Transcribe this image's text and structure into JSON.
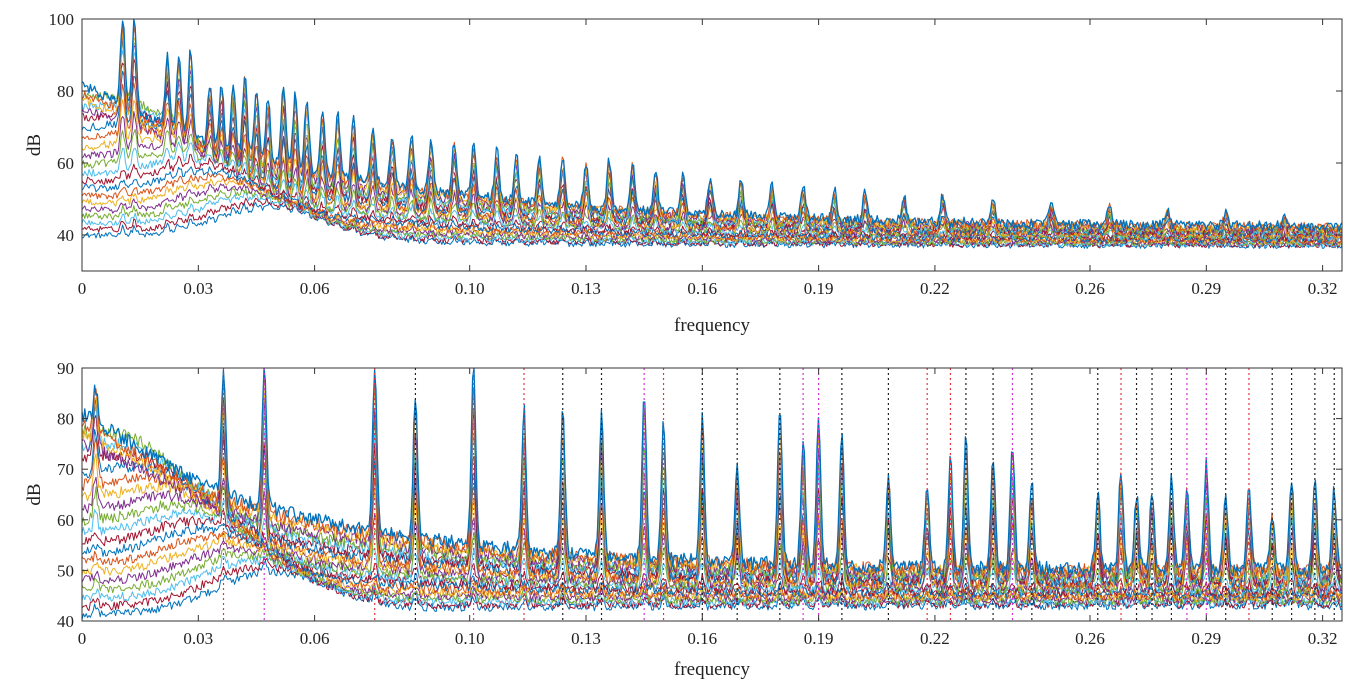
{
  "chart_data": [
    {
      "type": "line",
      "xlabel": "frequency",
      "ylabel": "dB",
      "xlim": [
        0,
        0.325
      ],
      "ylim": [
        30,
        100
      ],
      "x_ticks": [
        0,
        0.03,
        0.06,
        0.1,
        0.13,
        0.16,
        0.19,
        0.22,
        0.26,
        0.29,
        0.32
      ],
      "x_tick_labels": [
        "0",
        "0.03",
        "0.06",
        "0.10",
        "0.13",
        "0.16",
        "0.19",
        "0.22",
        "0.26",
        "0.29",
        "0.32"
      ],
      "y_ticks": [
        40,
        60,
        80,
        100
      ],
      "y_tick_labels": [
        "40",
        "60",
        "80",
        "100"
      ],
      "grid": false,
      "series_count": 22,
      "series_colors": [
        "#0072BD",
        "#D95319",
        "#EDB120",
        "#7E2F8E",
        "#77AC30",
        "#4DBEEE",
        "#A2142F"
      ],
      "peak_frequencies": [
        0.0105,
        0.0135,
        0.022,
        0.025,
        0.028,
        0.033,
        0.036,
        0.039,
        0.042,
        0.045,
        0.048,
        0.052,
        0.055,
        0.058,
        0.062,
        0.066,
        0.07,
        0.075,
        0.08,
        0.085,
        0.09,
        0.096,
        0.101,
        0.107,
        0.112,
        0.118,
        0.124,
        0.13,
        0.136,
        0.142,
        0.148,
        0.155,
        0.162,
        0.17,
        0.178,
        0.186,
        0.194,
        0.202,
        0.212,
        0.222,
        0.235,
        0.25,
        0.265,
        0.28,
        0.295,
        0.31
      ],
      "peak_heights_db": [
        100,
        100,
        90,
        89,
        92,
        82,
        82,
        83,
        85,
        80,
        78,
        82,
        80,
        78,
        75,
        74,
        72,
        70,
        68,
        68,
        66,
        66,
        66,
        64,
        63,
        62,
        62,
        60,
        61,
        60,
        57,
        57,
        56,
        56,
        54,
        54,
        53,
        52,
        51,
        51,
        50,
        49,
        48,
        47,
        46,
        45
      ],
      "lowest_series_start_db": 40,
      "highest_series_start_db": 78,
      "end_level_db_range": [
        37,
        42
      ]
    },
    {
      "type": "line",
      "xlabel": "frequency",
      "ylabel": "dB",
      "xlim": [
        0,
        0.325
      ],
      "ylim": [
        40,
        90
      ],
      "x_ticks": [
        0,
        0.03,
        0.06,
        0.1,
        0.13,
        0.16,
        0.19,
        0.22,
        0.26,
        0.29,
        0.32
      ],
      "x_tick_labels": [
        "0",
        "0.03",
        "0.06",
        "0.10",
        "0.13",
        "0.16",
        "0.19",
        "0.22",
        "0.26",
        "0.29",
        "0.32"
      ],
      "y_ticks": [
        40,
        50,
        60,
        70,
        80,
        90
      ],
      "y_tick_labels": [
        "40",
        "50",
        "60",
        "70",
        "80",
        "90"
      ],
      "grid": false,
      "series_count": 22,
      "series_colors": [
        "#0072BD",
        "#D95319",
        "#EDB120",
        "#7E2F8E",
        "#77AC30",
        "#4DBEEE",
        "#A2142F"
      ],
      "peaks": [
        {
          "x": 0.0035,
          "height": 86
        },
        {
          "x": 0.0365,
          "height": 90
        },
        {
          "x": 0.047,
          "height": 90
        },
        {
          "x": 0.0755,
          "height": 90
        },
        {
          "x": 0.086,
          "height": 85
        },
        {
          "x": 0.101,
          "height": 90
        },
        {
          "x": 0.114,
          "height": 82
        },
        {
          "x": 0.124,
          "height": 82
        },
        {
          "x": 0.134,
          "height": 81
        },
        {
          "x": 0.145,
          "height": 85
        },
        {
          "x": 0.15,
          "height": 80
        },
        {
          "x": 0.16,
          "height": 80
        },
        {
          "x": 0.169,
          "height": 70
        },
        {
          "x": 0.18,
          "height": 82
        },
        {
          "x": 0.186,
          "height": 76
        },
        {
          "x": 0.19,
          "height": 80
        },
        {
          "x": 0.196,
          "height": 78
        },
        {
          "x": 0.208,
          "height": 70
        },
        {
          "x": 0.218,
          "height": 67
        },
        {
          "x": 0.224,
          "height": 72
        },
        {
          "x": 0.228,
          "height": 76
        },
        {
          "x": 0.235,
          "height": 73
        },
        {
          "x": 0.24,
          "height": 75
        },
        {
          "x": 0.245,
          "height": 67
        },
        {
          "x": 0.262,
          "height": 66
        },
        {
          "x": 0.268,
          "height": 70
        },
        {
          "x": 0.272,
          "height": 65
        },
        {
          "x": 0.276,
          "height": 66
        },
        {
          "x": 0.281,
          "height": 69
        },
        {
          "x": 0.285,
          "height": 67
        },
        {
          "x": 0.29,
          "height": 71
        },
        {
          "x": 0.295,
          "height": 65
        },
        {
          "x": 0.301,
          "height": 67
        },
        {
          "x": 0.307,
          "height": 61
        },
        {
          "x": 0.312,
          "height": 68
        },
        {
          "x": 0.318,
          "height": 68
        },
        {
          "x": 0.323,
          "height": 66
        }
      ],
      "vertical_markers": [
        {
          "x": 0.0365,
          "color": "#e8333b"
        },
        {
          "x": 0.047,
          "color": "#d633d6"
        },
        {
          "x": 0.0755,
          "color": "#e8333b"
        },
        {
          "x": 0.086,
          "color": "#222222"
        },
        {
          "x": 0.101,
          "color": "#d633d6"
        },
        {
          "x": 0.114,
          "color": "#e8333b"
        },
        {
          "x": 0.124,
          "color": "#222222"
        },
        {
          "x": 0.134,
          "color": "#222222"
        },
        {
          "x": 0.145,
          "color": "#d633d6"
        },
        {
          "x": 0.15,
          "color": "#e8333b"
        },
        {
          "x": 0.16,
          "color": "#222222"
        },
        {
          "x": 0.169,
          "color": "#222222"
        },
        {
          "x": 0.18,
          "color": "#222222"
        },
        {
          "x": 0.186,
          "color": "#d633d6"
        },
        {
          "x": 0.19,
          "color": "#d633d6"
        },
        {
          "x": 0.196,
          "color": "#222222"
        },
        {
          "x": 0.208,
          "color": "#222222"
        },
        {
          "x": 0.218,
          "color": "#e8333b"
        },
        {
          "x": 0.224,
          "color": "#e8333b"
        },
        {
          "x": 0.228,
          "color": "#222222"
        },
        {
          "x": 0.235,
          "color": "#222222"
        },
        {
          "x": 0.24,
          "color": "#d633d6"
        },
        {
          "x": 0.245,
          "color": "#222222"
        },
        {
          "x": 0.262,
          "color": "#222222"
        },
        {
          "x": 0.268,
          "color": "#e8333b"
        },
        {
          "x": 0.272,
          "color": "#222222"
        },
        {
          "x": 0.276,
          "color": "#222222"
        },
        {
          "x": 0.281,
          "color": "#222222"
        },
        {
          "x": 0.285,
          "color": "#d633d6"
        },
        {
          "x": 0.29,
          "color": "#d633d6"
        },
        {
          "x": 0.295,
          "color": "#222222"
        },
        {
          "x": 0.301,
          "color": "#e8333b"
        },
        {
          "x": 0.307,
          "color": "#222222"
        },
        {
          "x": 0.312,
          "color": "#222222"
        },
        {
          "x": 0.318,
          "color": "#222222"
        },
        {
          "x": 0.323,
          "color": "#222222"
        }
      ],
      "lowest_series_start_db": 41,
      "highest_series_start_db": 78,
      "end_level_db_range": [
        43,
        50
      ]
    }
  ]
}
